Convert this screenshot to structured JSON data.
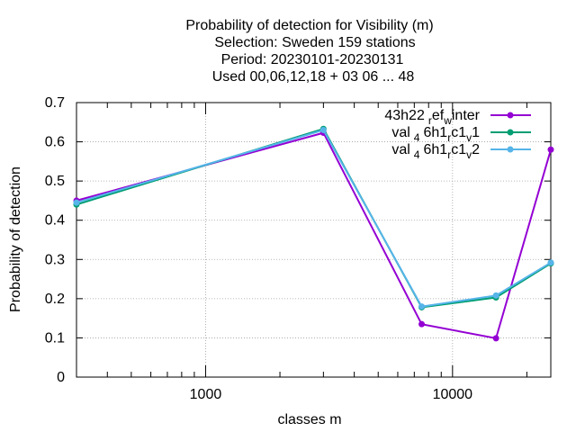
{
  "chart_data": {
    "type": "line",
    "title_lines": [
      "Probability of detection  for Visibility (m)",
      "Selection: Sweden    159 stations",
      "Period: 20230101-20230131",
      "Used  00,06,12,18  + 03 06 ... 48"
    ],
    "xlabel": "classes m",
    "ylabel": "Probability of detection",
    "x_scale": "log",
    "xlim": [
      300,
      25000
    ],
    "ylim": [
      0,
      0.7
    ],
    "x_ticks": [
      1000,
      10000
    ],
    "x_tick_labels": [
      "1000",
      "10000"
    ],
    "y_ticks": [
      0,
      0.1,
      0.2,
      0.3,
      0.4,
      0.5,
      0.6,
      0.7
    ],
    "y_tick_labels": [
      "0",
      "0.1",
      "0.2",
      "0.3",
      "0.4",
      "0.5",
      "0.6",
      "0.7"
    ],
    "grid": true,
    "legend_position": "top-right",
    "x": [
      300,
      3000,
      7500,
      15000,
      25000
    ],
    "series": [
      {
        "name": "43h22",
        "name_sub1": "r",
        "name_mid": "ef",
        "name_sub2": "w",
        "name_end": "inter",
        "color": "#9400d3",
        "values": [
          0.45,
          0.623,
          0.135,
          0.099,
          0.58
        ]
      },
      {
        "name": "val",
        "name_sub1": "4",
        "name_mid": "6h1",
        "name_sub2": "r",
        "name_mid2": "c1",
        "name_sub3": "v",
        "name_end": "1",
        "color": "#009e73",
        "values": [
          0.44,
          0.633,
          0.178,
          0.203,
          0.29
        ]
      },
      {
        "name": "val",
        "name_sub1": "4",
        "name_mid": "6h1",
        "name_sub2": "r",
        "name_mid2": "c1",
        "name_sub3": "v",
        "name_end": "2",
        "color": "#56b4e9",
        "values": [
          0.445,
          0.63,
          0.18,
          0.208,
          0.292
        ]
      }
    ]
  }
}
